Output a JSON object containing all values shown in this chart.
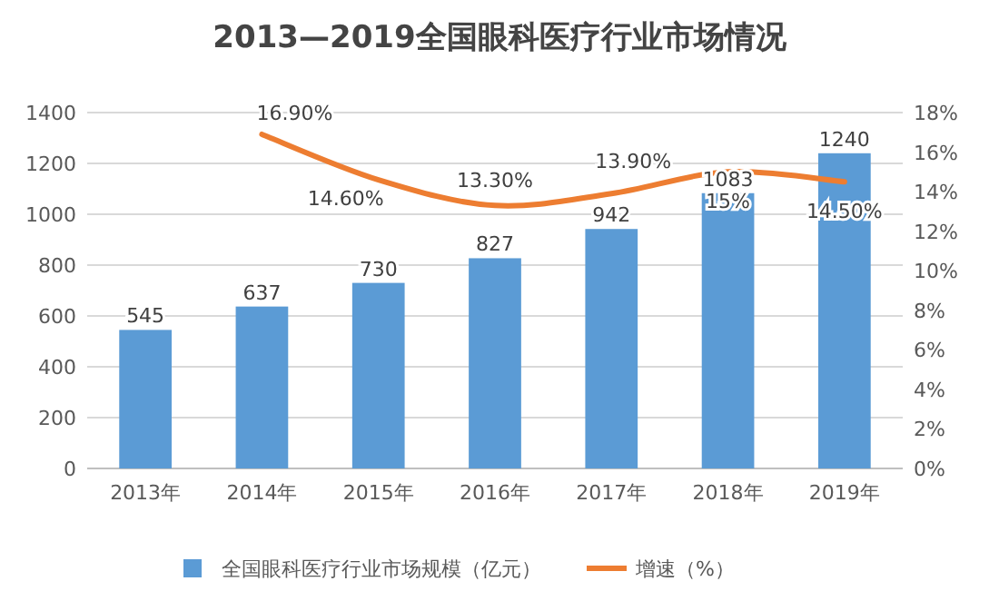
{
  "chart_data": {
    "type": "bar",
    "title": "2013—2019全国眼科医疗行业市场情况",
    "categories": [
      "2013年",
      "2014年",
      "2015年",
      "2016年",
      "2017年",
      "2018年",
      "2019年"
    ],
    "series": [
      {
        "name": "全国眼科医疗行业市场规模（亿元）",
        "color": "#5b9bd5",
        "values": [
          545,
          637,
          730,
          827,
          942,
          1083,
          1240
        ],
        "data_labels": true
      },
      {
        "name": "增速（%）",
        "type": "line",
        "axis": "y2",
        "color": "#ed7d31",
        "values": [
          null,
          16.9,
          14.6,
          13.3,
          13.9,
          15,
          14.5
        ],
        "value_labels": [
          null,
          "16.90%",
          "14.60%",
          "13.30%",
          "13.90%",
          "15%",
          "14.50%"
        ]
      }
    ],
    "ylim": [
      0,
      1400
    ],
    "yticks": [
      0,
      200,
      400,
      600,
      800,
      1000,
      1200,
      1400
    ],
    "y2lim": [
      0,
      18
    ],
    "y2ticks": [
      {
        "value": 0,
        "label": "0%"
      },
      {
        "value": 2,
        "label": "2%"
      },
      {
        "value": 4,
        "label": "4%"
      },
      {
        "value": 6,
        "label": "6%"
      },
      {
        "value": 8,
        "label": "8%"
      },
      {
        "value": 10,
        "label": "10%"
      },
      {
        "value": 12,
        "label": "12%"
      },
      {
        "value": 14,
        "label": "14%"
      },
      {
        "value": 16,
        "label": "16%"
      },
      {
        "value": 18,
        "label": "18%"
      }
    ],
    "grid": "y",
    "legend": "bottom"
  }
}
